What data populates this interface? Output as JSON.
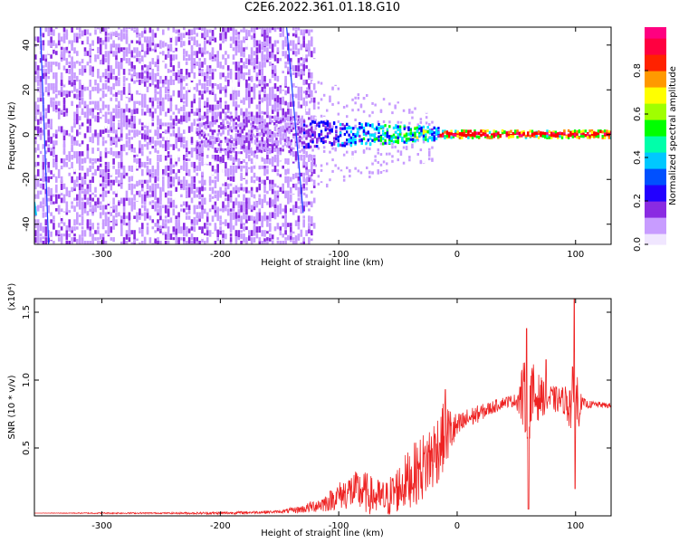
{
  "title": "C2E6.2022.361.01.18.G10",
  "chart_data": [
    {
      "type": "heatmap",
      "xlabel": "Height of straight line (km)",
      "ylabel": "Frequency (Hz)",
      "xlim": [
        -357,
        130
      ],
      "ylim": [
        -49,
        48
      ],
      "x_ticks": [
        -300,
        -200,
        -100,
        0,
        100
      ],
      "x_tick_labels": [
        "-300",
        "-200",
        "-100",
        "0",
        "100"
      ],
      "y_ticks": [
        -40,
        -20,
        0,
        20,
        40
      ],
      "y_tick_labels": [
        "-40",
        "-20",
        "0",
        "20",
        "40"
      ],
      "colorbar": {
        "label": "Normalized spectral amplitude",
        "range": [
          0,
          1
        ],
        "ticks": [
          0.0,
          0.2,
          0.4,
          0.6,
          0.8
        ],
        "tick_labels": [
          "0.0",
          "0.2",
          "0.4",
          "0.6",
          "0.8"
        ],
        "colors": [
          "#ffffff",
          "#c89cff",
          "#8a2be2",
          "#0000ff",
          "#00e5ff",
          "#00ff00",
          "#ffff00",
          "#ff8000",
          "#ff0000",
          "#ff0080"
        ]
      },
      "features": [
        {
          "name": "broadband noise",
          "x_range": [
            -357,
            -130
          ],
          "freq_range": [
            -49,
            48
          ],
          "amplitude": 0.15
        },
        {
          "name": "carrier line",
          "x_range": [
            -180,
            130
          ],
          "center_freq": 0,
          "amplitude": 0.95
        }
      ]
    },
    {
      "type": "line",
      "xlabel": "Height of straight line (km)",
      "ylabel": "SNR (10 * v/v)",
      "y_multiplier": "(x10⁴)",
      "xlim": [
        -357,
        130
      ],
      "ylim": [
        0,
        1.6
      ],
      "x_ticks": [
        -300,
        -200,
        -100,
        0,
        100
      ],
      "x_tick_labels": [
        "-300",
        "-200",
        "-100",
        "0",
        "100"
      ],
      "y_ticks": [
        0.5,
        1.0,
        1.5
      ],
      "y_tick_labels": [
        "0.5",
        "1.0",
        "1.5"
      ],
      "color": "#ee2222",
      "x": [
        -357,
        -300,
        -250,
        -200,
        -150,
        -130,
        -110,
        -100,
        -90,
        -80,
        -70,
        -60,
        -50,
        -40,
        -30,
        -20,
        -10,
        0,
        10,
        20,
        30,
        40,
        50,
        55,
        60,
        65,
        70,
        80,
        90,
        95,
        100,
        105,
        110,
        120,
        130
      ],
      "y": [
        0.02,
        0.02,
        0.02,
        0.02,
        0.03,
        0.05,
        0.1,
        0.15,
        0.18,
        0.18,
        0.14,
        0.12,
        0.2,
        0.28,
        0.35,
        0.45,
        0.6,
        0.65,
        0.72,
        0.76,
        0.8,
        0.84,
        0.85,
        0.88,
        0.85,
        0.87,
        0.88,
        0.86,
        0.85,
        0.83,
        0.84,
        0.83,
        0.82,
        0.82,
        0.81
      ],
      "noise_amp": [
        0.0,
        0.005,
        0.005,
        0.01,
        0.01,
        0.03,
        0.07,
        0.1,
        0.14,
        0.16,
        0.14,
        0.14,
        0.18,
        0.22,
        0.25,
        0.28,
        0.25,
        0.1,
        0.08,
        0.06,
        0.05,
        0.04,
        0.05,
        0.25,
        0.3,
        0.25,
        0.15,
        0.1,
        0.1,
        0.2,
        0.35,
        0.05,
        0.03,
        0.02,
        0.02
      ],
      "peaks": [
        {
          "x": 58.7,
          "y": 1.38
        },
        {
          "x": 60.2,
          "y": 0.05
        },
        {
          "x": 98.9,
          "y": 1.62
        },
        {
          "x": 99.5,
          "y": 0.2
        },
        {
          "x": -10,
          "y": 0.93
        },
        {
          "x": 75,
          "y": 1.15
        }
      ]
    }
  ]
}
